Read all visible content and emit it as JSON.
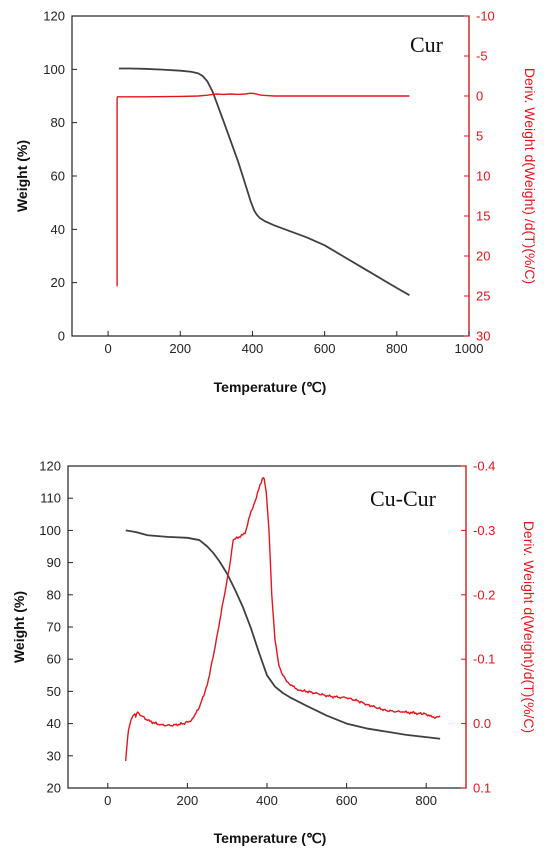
{
  "colors": {
    "weight": "#404040",
    "deriv": "#e8141b",
    "axis": "#222222"
  },
  "chart_data": [
    {
      "type": "line",
      "annotation": "Cur",
      "xlabel": "Temperature (℃)",
      "ylabel": "Weight (%)",
      "y2label": "Deriv. Weight d(Weight) /d(T)(%/C)",
      "xlim": [
        -100,
        1000
      ],
      "ylim": [
        0,
        120
      ],
      "y2lim": [
        30,
        -10
      ],
      "x_ticks": [
        0,
        200,
        400,
        600,
        800,
        1000
      ],
      "y_ticks": [
        0,
        20,
        40,
        60,
        80,
        100,
        120
      ],
      "y2_ticks": [
        30,
        25,
        20,
        15,
        10,
        5,
        0,
        -5,
        -10
      ],
      "series": [
        {
          "axis": "left",
          "color": "#404040",
          "x": [
            30,
            60,
            100,
            150,
            200,
            230,
            250,
            262,
            275,
            290,
            305,
            320,
            340,
            360,
            380,
            395,
            405,
            412,
            420,
            435,
            460,
            500,
            550,
            600,
            650,
            700,
            750,
            800,
            835
          ],
          "y": [
            100.3,
            100.3,
            100.2,
            99.9,
            99.5,
            99.1,
            98.5,
            97.5,
            95.5,
            91.5,
            86,
            80.5,
            73,
            65.5,
            57,
            50.5,
            47,
            45.5,
            44.3,
            43,
            41.5,
            39.5,
            37,
            34,
            30,
            26,
            22,
            18,
            15.3
          ]
        },
        {
          "axis": "right",
          "color": "#e8141b",
          "x": [
            25,
            25,
            25,
            26,
            30,
            100,
            200,
            250,
            275,
            290,
            300,
            320,
            340,
            360,
            380,
            395,
            405,
            415,
            425,
            440,
            460,
            500,
            600,
            700,
            800,
            835
          ],
          "y": [
            23.8,
            12,
            0.3,
            0.1,
            0.1,
            0.1,
            0.05,
            0,
            -0.1,
            -0.2,
            -0.25,
            -0.2,
            -0.25,
            -0.2,
            -0.25,
            -0.35,
            -0.3,
            -0.2,
            -0.1,
            -0.05,
            0,
            0,
            0,
            0,
            0,
            0
          ]
        }
      ]
    },
    {
      "type": "line",
      "annotation": "Cu-Cur",
      "xlabel": "Temperature (℃)",
      "ylabel": "Weight (%)",
      "y2label": "Deriv. Weight d(Weight)/d(T)(%/C)",
      "xlim": [
        -100,
        900
      ],
      "ylim": [
        20,
        120
      ],
      "y2lim": [
        0.1,
        -0.4
      ],
      "x_ticks": [
        0,
        200,
        400,
        600,
        800
      ],
      "y_ticks": [
        20,
        30,
        40,
        50,
        60,
        70,
        80,
        90,
        100,
        110,
        120
      ],
      "y2_ticks": [
        0.1,
        0.0,
        -0.1,
        -0.2,
        -0.3,
        -0.4
      ],
      "y2_tick_labels": [
        "0.1",
        "0.0",
        "-0.1",
        "-0.2",
        "-0.3",
        "-0.4"
      ],
      "series": [
        {
          "axis": "left",
          "color": "#404040",
          "x": [
            45,
            70,
            100,
            150,
            200,
            230,
            250,
            265,
            280,
            300,
            320,
            340,
            360,
            380,
            400,
            420,
            440,
            460,
            500,
            550,
            600,
            650,
            700,
            750,
            800,
            835
          ],
          "y": [
            100,
            99.5,
            98.5,
            98,
            97.7,
            97,
            95,
            93,
            90.5,
            86.5,
            81.5,
            76,
            69.5,
            62,
            55,
            51.5,
            49.5,
            48,
            45.5,
            42.5,
            40,
            38.5,
            37.5,
            36.5,
            35.8,
            35.3
          ],
          "noise": 0
        },
        {
          "axis": "right",
          "color": "#e8141b",
          "x": [
            45,
            48,
            52,
            58,
            63,
            68,
            70,
            75,
            85,
            100,
            130,
            160,
            190,
            210,
            230,
            250,
            270,
            290,
            305,
            315,
            330,
            345,
            360,
            370,
            380,
            388,
            393,
            398,
            405,
            412,
            420,
            430,
            440,
            450,
            465,
            480,
            500,
            530,
            560,
            600,
            630,
            650,
            680,
            700,
            740,
            780,
            800,
            815,
            825,
            835
          ],
          "y": [
            0.058,
            0.035,
            0.01,
            -0.005,
            -0.012,
            -0.015,
            -0.01,
            -0.018,
            -0.012,
            -0.005,
            0.002,
            0.003,
            0.0,
            -0.005,
            -0.025,
            -0.06,
            -0.12,
            -0.19,
            -0.24,
            -0.285,
            -0.29,
            -0.295,
            -0.33,
            -0.345,
            -0.365,
            -0.38,
            -0.38,
            -0.36,
            -0.3,
            -0.2,
            -0.13,
            -0.09,
            -0.075,
            -0.065,
            -0.058,
            -0.052,
            -0.05,
            -0.046,
            -0.042,
            -0.04,
            -0.035,
            -0.03,
            -0.024,
            -0.02,
            -0.018,
            -0.016,
            -0.015,
            -0.01,
            -0.01,
            -0.012
          ],
          "noise": 1
        }
      ]
    }
  ]
}
